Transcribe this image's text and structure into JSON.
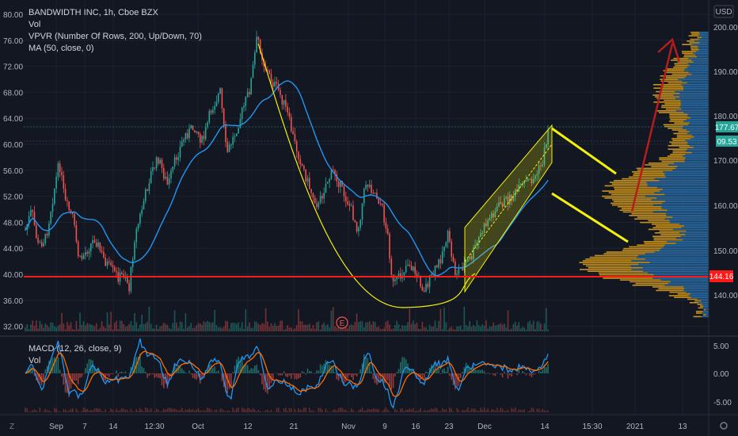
{
  "legend": {
    "title": "BANDWIDTH INC, 1h, Cboe BZX",
    "line2": "Vol",
    "line3": "VPVR (Number Of Rows, 200, Up/Down, 70)",
    "line4": "MA (50, close, 0)"
  },
  "macd_legend": {
    "title": "MACD (12, 26, close, 9)",
    "line2": "Vol"
  },
  "currency_label": "USD",
  "left_axis": [
    "80.00",
    "76.00",
    "72.00",
    "68.00",
    "64.00",
    "60.00",
    "56.00",
    "52.00",
    "48.00",
    "44.00",
    "40.00",
    "36.00",
    "32.00"
  ],
  "right_axis": [
    "200.00",
    "190.00",
    "180.00",
    "170.00",
    "160.00",
    "150.00",
    "140.00"
  ],
  "macd_axis": [
    "5.00",
    "0.00",
    "-5.00"
  ],
  "time_axis": [
    "Sep",
    "7",
    "14",
    "12:30",
    "Oct",
    "12",
    "21",
    "Nov",
    "9",
    "16",
    "23",
    "Dec",
    "14",
    "15:30",
    "2021",
    "13"
  ],
  "price_tags": {
    "red": "144.16",
    "green_top": "177.67",
    "green_bottom": "09.53"
  },
  "earnings_marker": "E",
  "tz_label": "Z",
  "colors": {
    "background": "#131722",
    "up": "#26a69a",
    "down": "#ef5350",
    "ma": "#2196f3",
    "pattern": "#f3f10c",
    "support": "#ff1a1a",
    "arrow": "#b71c1c",
    "vp_up": "#2a6ea8",
    "vp_down": "#c8921b"
  }
}
